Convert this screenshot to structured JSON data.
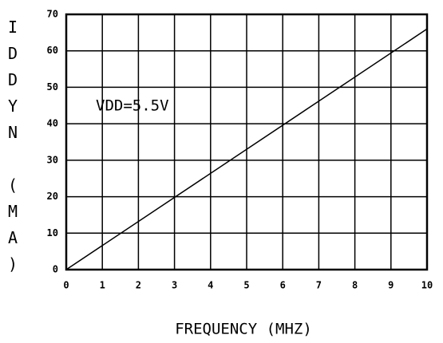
{
  "chart_data": {
    "type": "line",
    "xlabel": "FREQUENCY  (MHZ)",
    "ylabel": "IDDYN (MA)",
    "annotation": "VDD=5.5V",
    "series": [
      {
        "name": "VDD=5.5V",
        "color": "#000000",
        "x": [
          0,
          10
        ],
        "values": [
          0,
          66
        ]
      }
    ],
    "xlim": [
      0,
      10
    ],
    "xticks": [
      0,
      1,
      2,
      3,
      4,
      5,
      6,
      7,
      8,
      9,
      10
    ],
    "ylim": [
      0,
      70
    ],
    "yticks": [
      0,
      10,
      20,
      30,
      40,
      50,
      60,
      70
    ],
    "grid": true
  }
}
